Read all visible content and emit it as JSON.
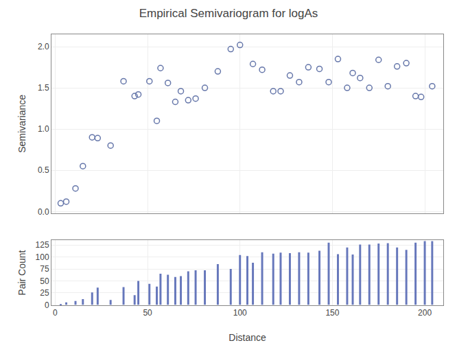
{
  "chart_data": [
    {
      "type": "scatter",
      "title": "Empirical Semivariogram for logAs",
      "ylabel": "Semivariance",
      "x": [
        3,
        6,
        11,
        15,
        20,
        23,
        30,
        37,
        43,
        45,
        51,
        55,
        57,
        61,
        65,
        68,
        72,
        76,
        81,
        88,
        95,
        100,
        107,
        112,
        118,
        122,
        127,
        132,
        137,
        143,
        148,
        153,
        158,
        161,
        165,
        170,
        175,
        180,
        185,
        190,
        195,
        198,
        204
      ],
      "values": [
        0.1,
        0.12,
        0.28,
        0.55,
        0.9,
        0.89,
        0.8,
        1.58,
        1.4,
        1.42,
        1.58,
        1.1,
        1.74,
        1.56,
        1.33,
        1.46,
        1.35,
        1.37,
        1.5,
        1.7,
        1.97,
        2.02,
        1.79,
        1.72,
        1.46,
        1.46,
        1.65,
        1.57,
        1.75,
        1.73,
        1.57,
        1.85,
        1.5,
        1.68,
        1.62,
        1.5,
        1.84,
        1.52,
        1.76,
        1.8,
        1.4,
        1.39,
        1.52
      ],
      "color": "#6677aa",
      "marker": "open circle",
      "xlim": [
        -2,
        210
      ],
      "xticks": [
        0,
        50,
        100,
        150,
        200
      ],
      "ylim": [
        -0.02,
        2.15
      ],
      "yticks": [
        {
          "value": 0.0,
          "label": "0.0"
        },
        {
          "value": 0.5,
          "label": "0.5"
        },
        {
          "value": 1.0,
          "label": "1.0"
        },
        {
          "value": 1.5,
          "label": "1.5"
        },
        {
          "value": 2.0,
          "label": "2.0"
        }
      ],
      "grid": true,
      "tick_labels": "y"
    },
    {
      "type": "vlines",
      "xlabel": "Distance",
      "ylabel": "Pair Count",
      "x": [
        3,
        6,
        11,
        15,
        20,
        23,
        30,
        37,
        43,
        45,
        51,
        55,
        57,
        61,
        65,
        68,
        72,
        76,
        81,
        88,
        95,
        100,
        104,
        107,
        112,
        118,
        122,
        127,
        132,
        137,
        143,
        148,
        153,
        158,
        161,
        165,
        170,
        175,
        180,
        185,
        190,
        195,
        200,
        204
      ],
      "values": [
        1,
        5,
        8,
        12,
        26,
        36,
        10,
        37,
        20,
        50,
        44,
        38,
        65,
        63,
        58,
        60,
        70,
        72,
        72,
        85,
        75,
        104,
        102,
        88,
        110,
        107,
        109,
        108,
        110,
        109,
        113,
        130,
        106,
        120,
        105,
        126,
        126,
        128,
        129,
        120,
        115,
        130,
        133,
        133
      ],
      "color": "#6677bb",
      "xlim": [
        -2,
        210
      ],
      "xticks": [
        0,
        50,
        100,
        150,
        200
      ],
      "ylim": [
        -1,
        135
      ],
      "yticks": [
        0,
        25,
        50,
        75,
        100,
        125
      ],
      "grid": true
    }
  ]
}
